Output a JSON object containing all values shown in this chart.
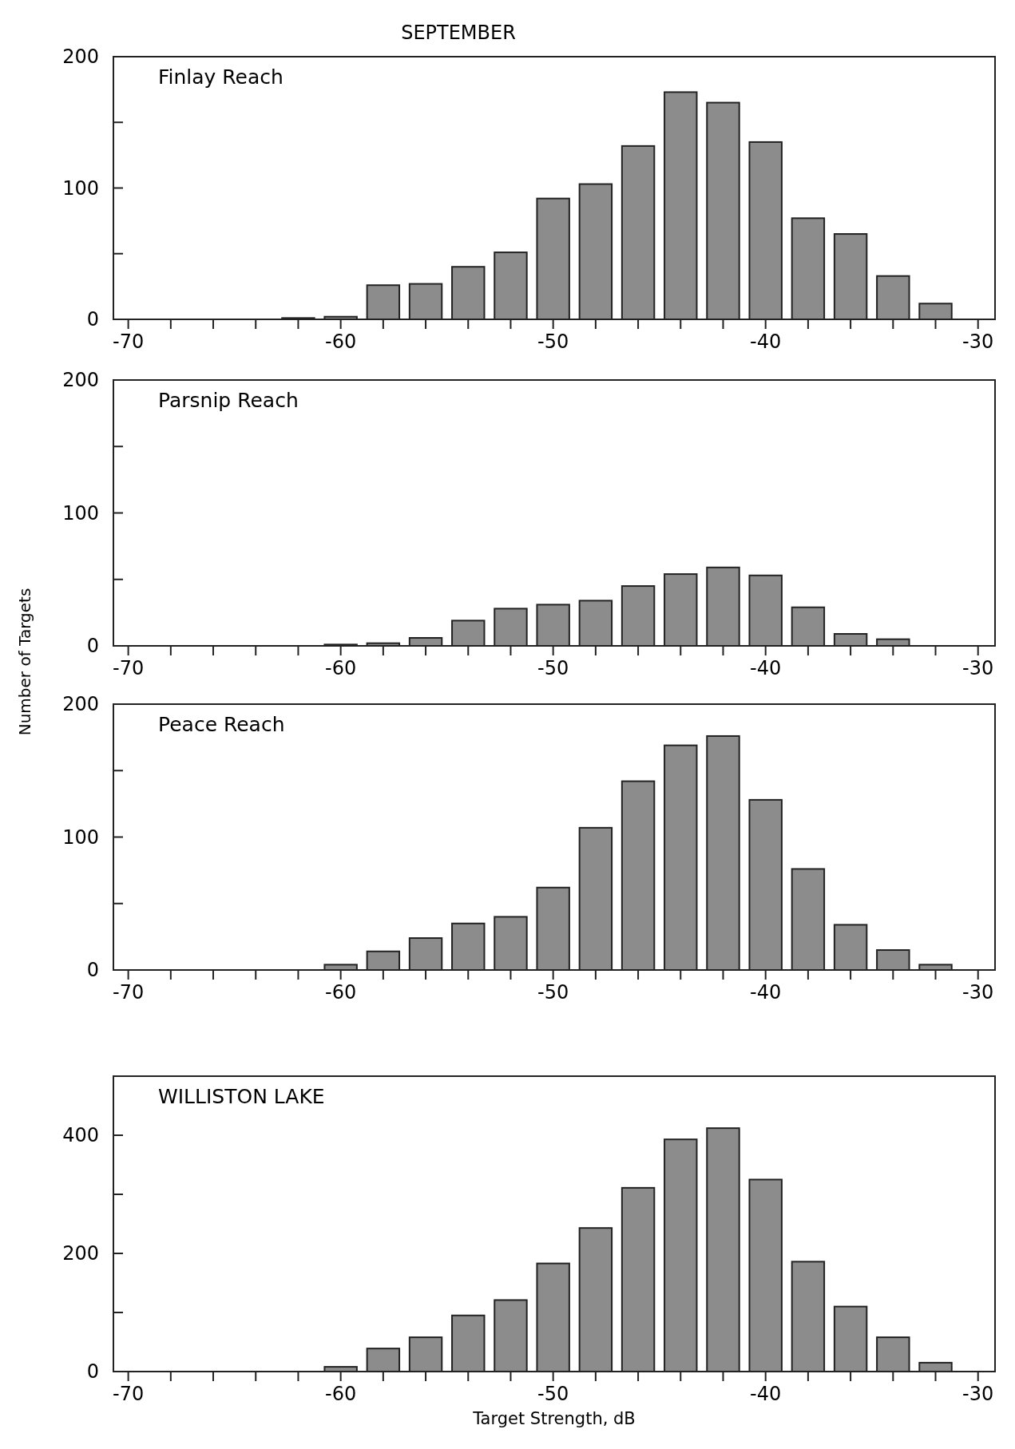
{
  "chart_data": [
    {
      "type": "bar",
      "title": "SEPTEMBER",
      "annotations": [
        "Finlay Reach"
      ],
      "x": [
        -62,
        -60,
        -58,
        -56,
        -54,
        -52,
        -50,
        -48,
        -46,
        -44,
        -42,
        -40,
        -38,
        -36,
        -34,
        -32
      ],
      "values": [
        1,
        2,
        26,
        27,
        40,
        51,
        92,
        103,
        132,
        173,
        165,
        135,
        77,
        65,
        33,
        12
      ],
      "color": "#8c8c8c",
      "xlim": [
        -70.7,
        -29.2
      ],
      "xticks": [
        -70,
        {
          "value": -68,
          "label": null
        },
        {
          "value": -66,
          "label": null
        },
        {
          "value": -64,
          "label": null
        },
        {
          "value": -62,
          "label": null
        },
        -60,
        {
          "value": -58,
          "label": null
        },
        {
          "value": -56,
          "label": null
        },
        {
          "value": -54,
          "label": null
        },
        {
          "value": -52,
          "label": null
        },
        -50,
        {
          "value": -48,
          "label": null
        },
        {
          "value": -46,
          "label": null
        },
        {
          "value": -44,
          "label": null
        },
        {
          "value": -42,
          "label": null
        },
        -40,
        {
          "value": -38,
          "label": null
        },
        {
          "value": -36,
          "label": null
        },
        {
          "value": -34,
          "label": null
        },
        {
          "value": -32,
          "label": null
        },
        -30
      ],
      "ylim": [
        0,
        200
      ],
      "yticks": [
        0,
        {
          "value": 50,
          "label": null
        },
        100,
        {
          "value": 150,
          "label": null
        },
        200
      ]
    },
    {
      "type": "bar",
      "annotations": [
        "Parsnip Reach"
      ],
      "ylabel": "Number of Targets",
      "x": [
        -60,
        -58,
        -56,
        -54,
        -52,
        -50,
        -48,
        -46,
        -44,
        -42,
        -40,
        -38,
        -36,
        -34
      ],
      "values": [
        1,
        2,
        6,
        19,
        28,
        31,
        34,
        45,
        54,
        59,
        53,
        29,
        9,
        5
      ],
      "color": "#8c8c8c",
      "xlim": [
        -70.7,
        -29.2
      ],
      "xticks": [
        -70,
        {
          "value": -68,
          "label": null
        },
        {
          "value": -66,
          "label": null
        },
        {
          "value": -64,
          "label": null
        },
        {
          "value": -62,
          "label": null
        },
        -60,
        {
          "value": -58,
          "label": null
        },
        {
          "value": -56,
          "label": null
        },
        {
          "value": -54,
          "label": null
        },
        {
          "value": -52,
          "label": null
        },
        -50,
        {
          "value": -48,
          "label": null
        },
        {
          "value": -46,
          "label": null
        },
        {
          "value": -44,
          "label": null
        },
        {
          "value": -42,
          "label": null
        },
        -40,
        {
          "value": -38,
          "label": null
        },
        {
          "value": -36,
          "label": null
        },
        {
          "value": -34,
          "label": null
        },
        {
          "value": -32,
          "label": null
        },
        -30
      ],
      "ylim": [
        0,
        200
      ],
      "yticks": [
        0,
        {
          "value": 50,
          "label": null
        },
        100,
        {
          "value": 150,
          "label": null
        },
        200
      ]
    },
    {
      "type": "bar",
      "annotations": [
        "Peace Reach"
      ],
      "x": [
        -60,
        -58,
        -56,
        -54,
        -52,
        -50,
        -48,
        -46,
        -44,
        -42,
        -40,
        -38,
        -36,
        -34,
        -32
      ],
      "values": [
        4,
        14,
        24,
        35,
        40,
        62,
        107,
        142,
        169,
        176,
        128,
        76,
        34,
        15,
        4
      ],
      "color": "#8c8c8c",
      "xlim": [
        -70.7,
        -29.2
      ],
      "xticks": [
        -70,
        {
          "value": -68,
          "label": null
        },
        {
          "value": -66,
          "label": null
        },
        {
          "value": -64,
          "label": null
        },
        {
          "value": -62,
          "label": null
        },
        -60,
        {
          "value": -58,
          "label": null
        },
        {
          "value": -56,
          "label": null
        },
        {
          "value": -54,
          "label": null
        },
        {
          "value": -52,
          "label": null
        },
        -50,
        {
          "value": -48,
          "label": null
        },
        {
          "value": -46,
          "label": null
        },
        {
          "value": -44,
          "label": null
        },
        {
          "value": -42,
          "label": null
        },
        -40,
        {
          "value": -38,
          "label": null
        },
        {
          "value": -36,
          "label": null
        },
        {
          "value": -34,
          "label": null
        },
        {
          "value": -32,
          "label": null
        },
        -30
      ],
      "ylim": [
        0,
        200
      ],
      "yticks": [
        0,
        {
          "value": 50,
          "label": null
        },
        100,
        {
          "value": 150,
          "label": null
        },
        200
      ]
    },
    {
      "type": "bar",
      "annotations": [
        "WILLISTON LAKE"
      ],
      "xlabel": "Target Strength, dB",
      "x": [
        -60,
        -58,
        -56,
        -54,
        -52,
        -50,
        -48,
        -46,
        -44,
        -42,
        -40,
        -38,
        -36,
        -34,
        -32
      ],
      "values": [
        8,
        39,
        58,
        95,
        121,
        183,
        243,
        311,
        393,
        412,
        325,
        186,
        110,
        58,
        15
      ],
      "color": "#8c8c8c",
      "xlim": [
        -70.7,
        -29.2
      ],
      "xticks": [
        -70,
        {
          "value": -68,
          "label": null
        },
        {
          "value": -66,
          "label": null
        },
        {
          "value": -64,
          "label": null
        },
        {
          "value": -62,
          "label": null
        },
        -60,
        {
          "value": -58,
          "label": null
        },
        {
          "value": -56,
          "label": null
        },
        {
          "value": -54,
          "label": null
        },
        {
          "value": -52,
          "label": null
        },
        -50,
        {
          "value": -48,
          "label": null
        },
        {
          "value": -46,
          "label": null
        },
        {
          "value": -44,
          "label": null
        },
        {
          "value": -42,
          "label": null
        },
        -40,
        {
          "value": -38,
          "label": null
        },
        {
          "value": -36,
          "label": null
        },
        {
          "value": -34,
          "label": null
        },
        {
          "value": -32,
          "label": null
        },
        -30
      ],
      "ylim": [
        0,
        500
      ],
      "yticks": [
        0,
        {
          "value": 100,
          "label": null
        },
        200,
        {
          "value": 300,
          "label": null
        },
        400
      ]
    }
  ]
}
